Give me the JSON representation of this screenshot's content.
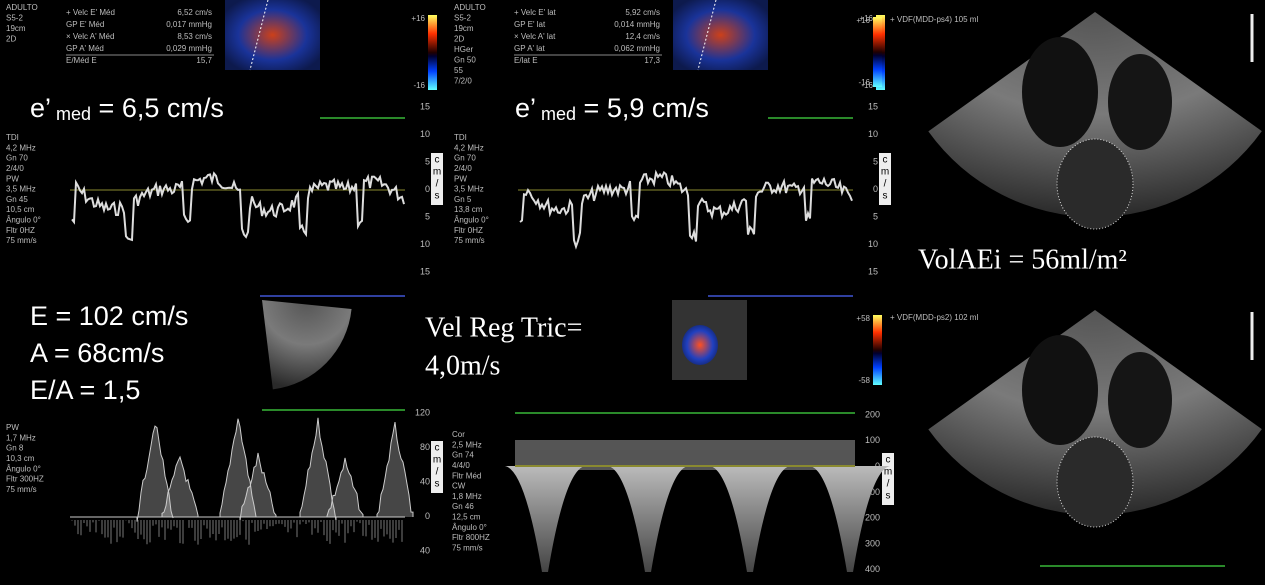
{
  "tdi_medial": {
    "header": [
      "ADULTO",
      "S5-2",
      "19cm",
      "2D"
    ],
    "measurements": [
      [
        "+ Velc E' Méd",
        "6,52 cm/s"
      ],
      [
        "GP E' Méd",
        "0,017 mmHg"
      ],
      [
        "× Velc A' Méd",
        "8,53 cm/s"
      ],
      [
        "GP A' Méd",
        "0,029 mmHg"
      ],
      [
        "E/Méd E",
        "15,7"
      ]
    ],
    "color_bar": [
      "+16",
      "-16"
    ],
    "overlay": [
      "e’",
      "med",
      "= 6,5 cm/s"
    ],
    "settings": [
      "TDI",
      "4,2 MHz",
      "Gn 70",
      "2/4/0",
      "PW",
      "3,5 MHz",
      "Gn 45",
      "10,5 cm",
      "Ângulo 0°",
      "Fltr 0HZ",
      "75 mm/s"
    ],
    "scale_ticks": [
      15,
      10,
      5,
      0,
      5,
      10,
      15
    ],
    "scale_unit": [
      "c",
      "m",
      "/",
      "s"
    ]
  },
  "tdi_lateral": {
    "header": [
      "ADULTO",
      "S5-2",
      "19cm",
      "2D",
      "HGer",
      "Gn 50",
      "55",
      "7/2/0"
    ],
    "measurements": [
      [
        "+ Velc E' lat",
        "5,92 cm/s"
      ],
      [
        "GP E' lat",
        "0,014 mmHg"
      ],
      [
        "× Velc A' lat",
        "12,4 cm/s"
      ],
      [
        "GP A' lat",
        "0,062 mmHg"
      ],
      [
        "E/lat E",
        "17,3"
      ]
    ],
    "color_bar": [
      "+16",
      "-16"
    ],
    "overlay": [
      "e’",
      "med",
      "= 5,9 cm/s"
    ],
    "settings": [
      "TDI",
      "4,2 MHz",
      "Gn 70",
      "2/4/0",
      "PW",
      "3,5 MHz",
      "Gn 5",
      "13,8 cm",
      "Ângulo 0°",
      "Fltr 0HZ",
      "75 mm/s"
    ],
    "scale_ticks": [
      15,
      10,
      5,
      0,
      5,
      10,
      15
    ],
    "scale_unit": [
      "c",
      "m",
      "/",
      "s"
    ]
  },
  "apical_4c": {
    "label": "+ VDF(MDD-ps4)   105 ml",
    "color_bar": [
      "+16",
      "-16"
    ],
    "overlay": "VolAEi = 56ml/m²"
  },
  "mitral_inflow": {
    "overlay": [
      "E = 102 cm/s",
      "A = 68cm/s",
      "E/A = 1,5"
    ],
    "settings": [
      "PW",
      "1,7 MHz",
      "Gn 8",
      "10,3 cm",
      "Ângulo 0°",
      "Fltr 300HZ",
      "75 mm/s"
    ],
    "scale_ticks": [
      120,
      80,
      40,
      0,
      40
    ],
    "scale_unit": [
      "c",
      "m",
      "/",
      "s"
    ]
  },
  "tricuspid_regurgitation": {
    "overlay": [
      "Vel Reg Tric=",
      "4,0m/s"
    ],
    "settings": [
      "Cor",
      "2,5 MHz",
      "Gn 74",
      "4/4/0",
      "Fltr Méd",
      "CW",
      "1,8 MHz",
      "Gn 46",
      "12,5 cm",
      "Ângulo 0°",
      "Fltr 800HZ",
      "75 mm/s"
    ],
    "scale_ticks": [
      200,
      100,
      0,
      100,
      200,
      300,
      400
    ],
    "scale_unit": [
      "c",
      "m",
      "/",
      "s"
    ]
  },
  "apical_2c": {
    "label": "+ VDF(MDD-ps2)   102 ml",
    "color_bar": [
      "+58",
      "-58"
    ]
  }
}
